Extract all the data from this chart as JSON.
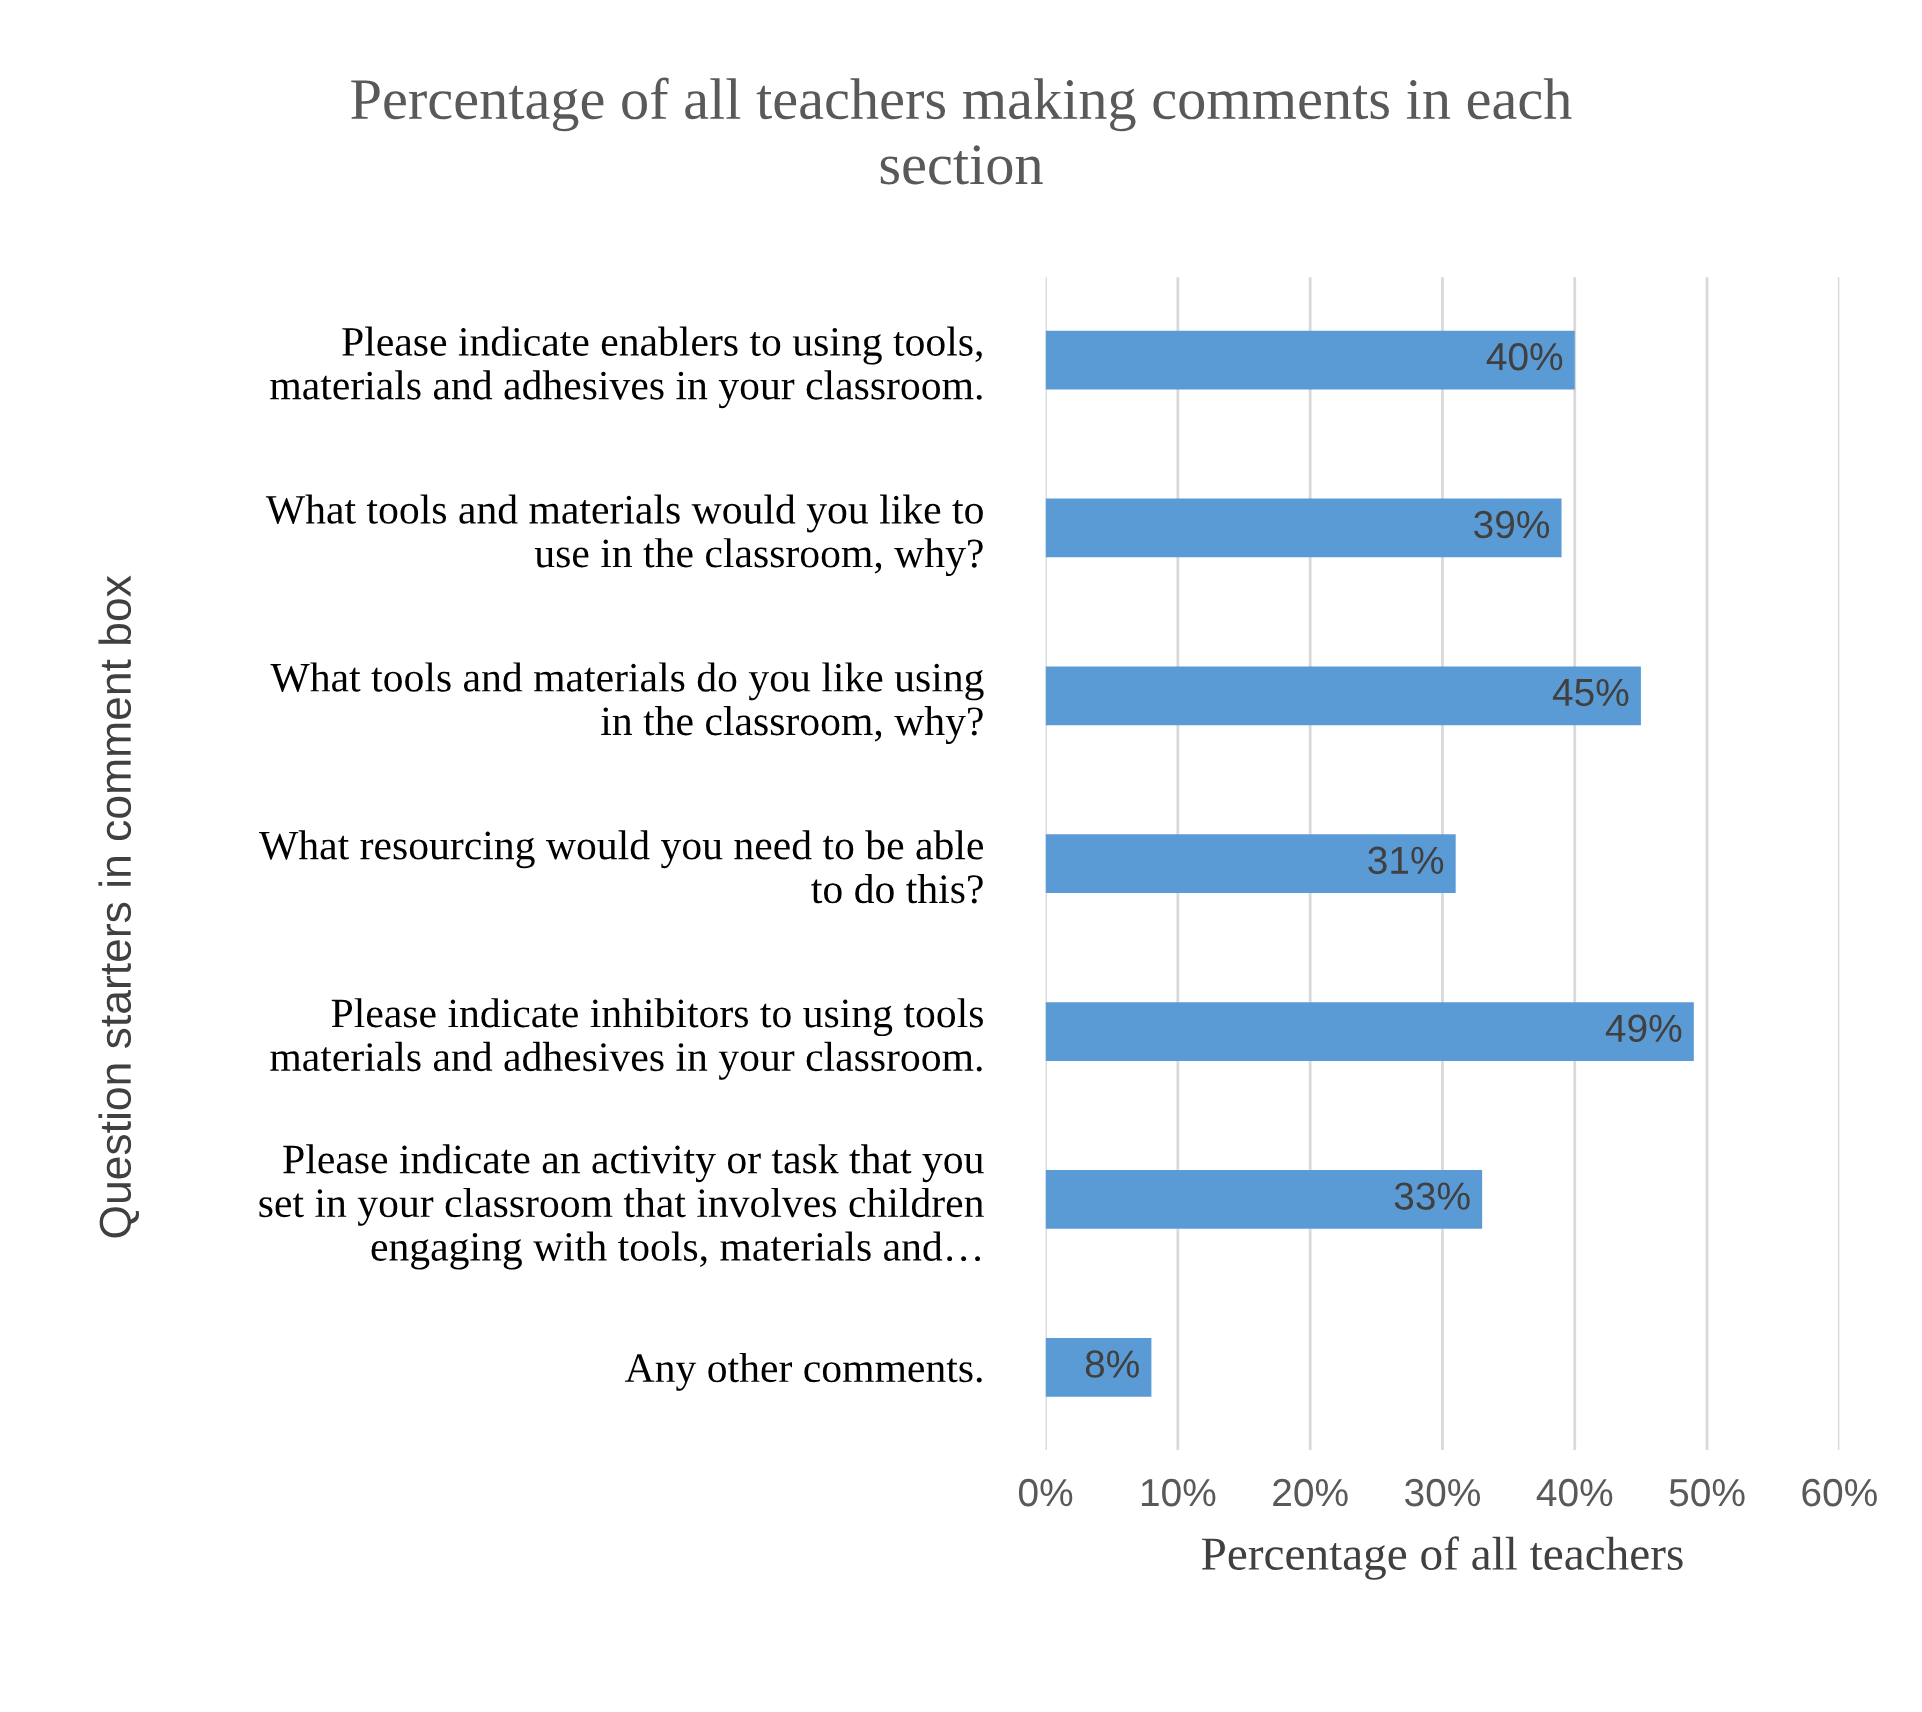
{
  "chart_data": {
    "type": "bar",
    "orientation": "horizontal",
    "title": "Percentage of all teachers making comments in each\nsection",
    "xlabel": "Percentage of all teachers",
    "ylabel": "Question starters in comment box",
    "categories": [
      "Please indicate enablers to using tools,\nmaterials and adhesives in your classroom.",
      "What tools and materials would you like to\nuse in the classroom, why?",
      "What tools and materials do you like using\nin the classroom, why?",
      "What resourcing would you need to be able\nto do this?",
      "Please indicate inhibitors to using tools\nmaterials and adhesives in your classroom.",
      "Please indicate an activity or task that you\nset in your classroom that involves children\nengaging with tools, materials and…",
      "Any other comments."
    ],
    "values": [
      40,
      39,
      45,
      31,
      49,
      33,
      8
    ],
    "value_labels": [
      "40%",
      "39%",
      "45%",
      "31%",
      "49%",
      "33%",
      "8%"
    ],
    "color": "#5b9bd5",
    "xlim": [
      0,
      60
    ],
    "xticks": [
      {
        "value": 0,
        "label": "0%"
      },
      {
        "value": 10,
        "label": "10%"
      },
      {
        "value": 20,
        "label": "20%"
      },
      {
        "value": 30,
        "label": "30%"
      },
      {
        "value": 40,
        "label": "40%"
      },
      {
        "value": 50,
        "label": "50%"
      },
      {
        "value": 60,
        "label": "60%"
      }
    ],
    "grid": "x",
    "legend": false
  }
}
